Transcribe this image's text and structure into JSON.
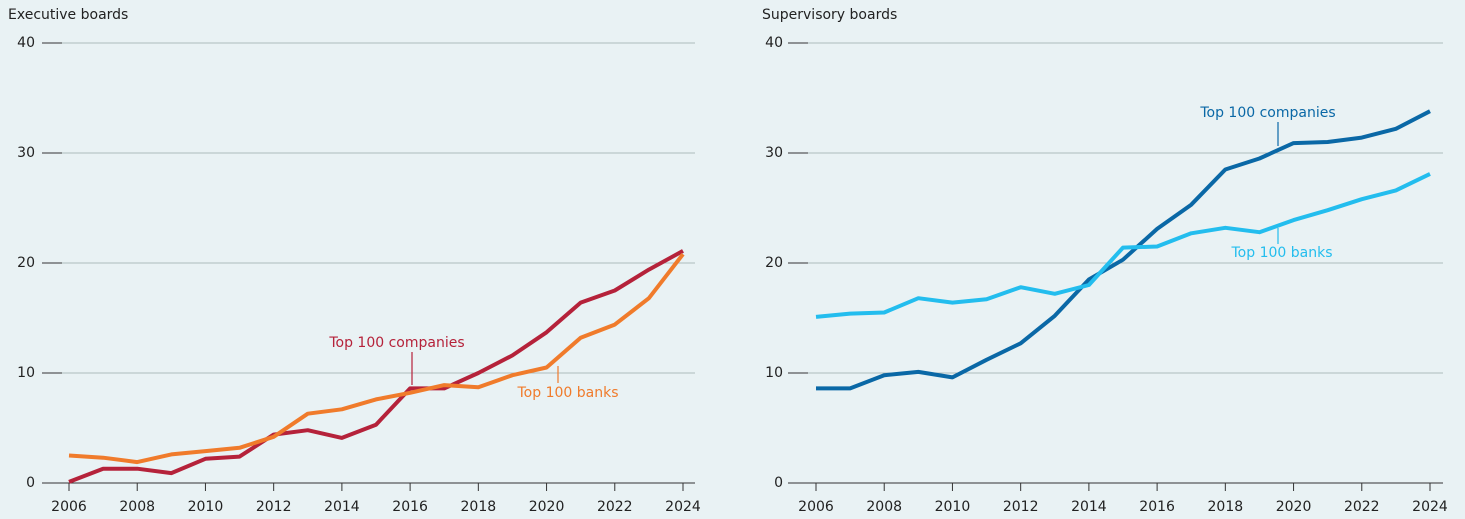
{
  "chart_data": [
    {
      "type": "line",
      "title": "Executive boards",
      "x": [
        2006,
        2007,
        2008,
        2009,
        2010,
        2011,
        2012,
        2013,
        2014,
        2015,
        2016,
        2017,
        2018,
        2019,
        2020,
        2021,
        2022,
        2023,
        2024
      ],
      "series": [
        {
          "name": "Top 100 companies",
          "color": "#b5223a",
          "values": [
            0.1,
            1.3,
            1.3,
            0.9,
            2.2,
            2.4,
            4.4,
            4.8,
            4.1,
            5.3,
            8.6,
            8.6,
            10.0,
            11.6,
            13.7,
            16.4,
            17.5,
            19.4,
            21.1
          ]
        },
        {
          "name": "Top 100 banks",
          "color": "#f07b2b",
          "values": [
            2.5,
            2.3,
            1.9,
            2.6,
            2.9,
            3.2,
            4.2,
            6.3,
            6.7,
            7.6,
            8.2,
            8.9,
            8.7,
            9.8,
            10.5,
            13.2,
            14.4,
            16.8,
            20.8
          ]
        }
      ],
      "xlim": [
        2006,
        2024
      ],
      "xticks": [
        2006,
        2008,
        2010,
        2012,
        2014,
        2016,
        2018,
        2020,
        2022,
        2024
      ],
      "ylim": [
        0,
        40
      ],
      "yticks": [
        0,
        10,
        20,
        30,
        40
      ],
      "grid": true
    },
    {
      "type": "line",
      "title": "Supervisory boards",
      "x": [
        2006,
        2007,
        2008,
        2009,
        2010,
        2011,
        2012,
        2013,
        2014,
        2015,
        2016,
        2017,
        2018,
        2019,
        2020,
        2021,
        2022,
        2023,
        2024
      ],
      "series": [
        {
          "name": "Top 100 companies",
          "color": "#0a68a6",
          "values": [
            8.6,
            8.6,
            9.8,
            10.1,
            9.6,
            11.2,
            12.7,
            15.2,
            18.5,
            20.3,
            23.1,
            25.3,
            28.5,
            29.5,
            30.9,
            31.0,
            31.4,
            32.2,
            33.8
          ]
        },
        {
          "name": "Top 100 banks",
          "color": "#23bdee",
          "values": [
            15.1,
            15.4,
            15.5,
            16.8,
            16.4,
            16.7,
            17.8,
            17.2,
            18.0,
            21.4,
            21.5,
            22.7,
            23.2,
            22.8,
            23.9,
            24.8,
            25.8,
            26.6,
            28.1
          ]
        }
      ],
      "xlim": [
        2006,
        2024
      ],
      "xticks": [
        2006,
        2008,
        2010,
        2012,
        2014,
        2016,
        2018,
        2020,
        2022,
        2024
      ],
      "ylim": [
        0,
        40
      ],
      "yticks": [
        0,
        10,
        20,
        30,
        40
      ],
      "grid": true
    }
  ]
}
